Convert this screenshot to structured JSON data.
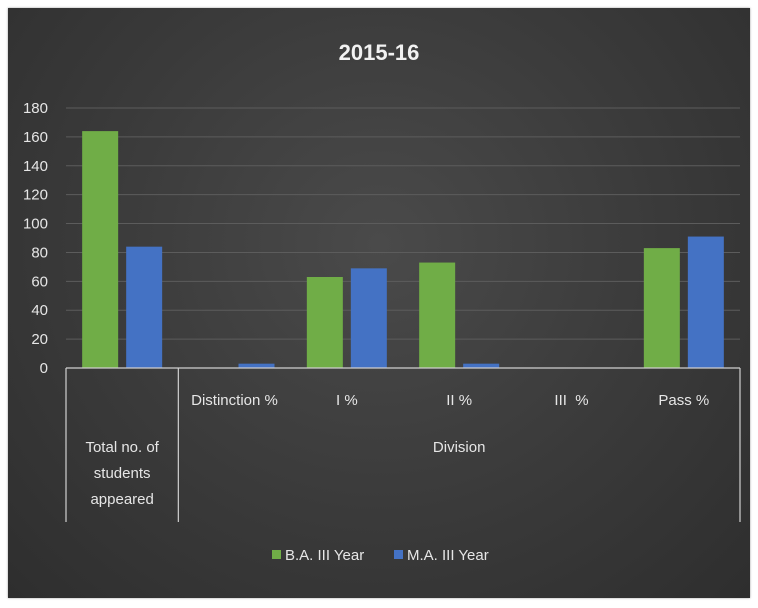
{
  "chart_data": {
    "type": "bar",
    "title": "2015-16",
    "ylim": [
      0,
      180
    ],
    "yticks": [
      0,
      20,
      40,
      60,
      80,
      100,
      120,
      140,
      160,
      180
    ],
    "grid": true,
    "legend_position": "bottom",
    "categories": [
      "Total no. of students appeared",
      "Distinction %",
      "I %",
      "II %",
      "III  %",
      "Pass %"
    ],
    "category_lines": {
      "total": [
        "Total no. of",
        "students",
        "appeared"
      ]
    },
    "group_label": "Division",
    "series": [
      {
        "name": "B.A. III Year",
        "color": "#70ad47",
        "values": [
          164,
          0,
          63,
          73,
          0,
          83
        ]
      },
      {
        "name": "M.A. III Year",
        "color": "#4472c4",
        "values": [
          84,
          3,
          69,
          3,
          0,
          91
        ]
      }
    ]
  }
}
